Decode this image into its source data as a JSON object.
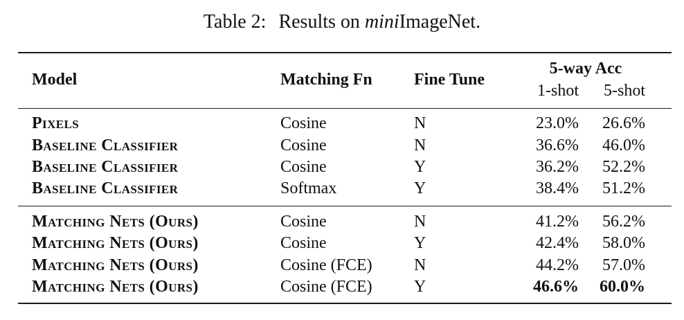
{
  "caption": {
    "label": "Table 2:",
    "prefix": "Results on ",
    "emph": "mini",
    "suffix": "ImageNet."
  },
  "headers": {
    "model": "Model",
    "matching_fn": "Matching Fn",
    "fine_tune": "Fine Tune",
    "acc_group": "5-way Acc",
    "one_shot": "1-shot",
    "five_shot": "5-shot"
  },
  "rows": [
    {
      "model": "Pixels",
      "matching_fn": "Cosine",
      "fine_tune": "N",
      "one_shot": "23.0%",
      "five_shot": "26.6%"
    },
    {
      "model": "Baseline Classifier",
      "matching_fn": "Cosine",
      "fine_tune": "N",
      "one_shot": "36.6%",
      "five_shot": "46.0%"
    },
    {
      "model": "Baseline Classifier",
      "matching_fn": "Cosine",
      "fine_tune": "Y",
      "one_shot": "36.2%",
      "five_shot": "52.2%"
    },
    {
      "model": "Baseline Classifier",
      "matching_fn": "Softmax",
      "fine_tune": "Y",
      "one_shot": "38.4%",
      "five_shot": "51.2%"
    },
    {
      "model": "Matching Nets (Ours)",
      "matching_fn": "Cosine",
      "fine_tune": "N",
      "one_shot": "41.2%",
      "five_shot": "56.2%"
    },
    {
      "model": "Matching Nets (Ours)",
      "matching_fn": "Cosine",
      "fine_tune": "Y",
      "one_shot": "42.4%",
      "five_shot": "58.0%"
    },
    {
      "model": "Matching Nets (Ours)",
      "matching_fn": "Cosine (FCE)",
      "fine_tune": "N",
      "one_shot": "44.2%",
      "five_shot": "57.0%"
    },
    {
      "model": "Matching Nets (Ours)",
      "matching_fn": "Cosine (FCE)",
      "fine_tune": "Y",
      "one_shot": "46.6%",
      "five_shot": "60.0%"
    }
  ]
}
